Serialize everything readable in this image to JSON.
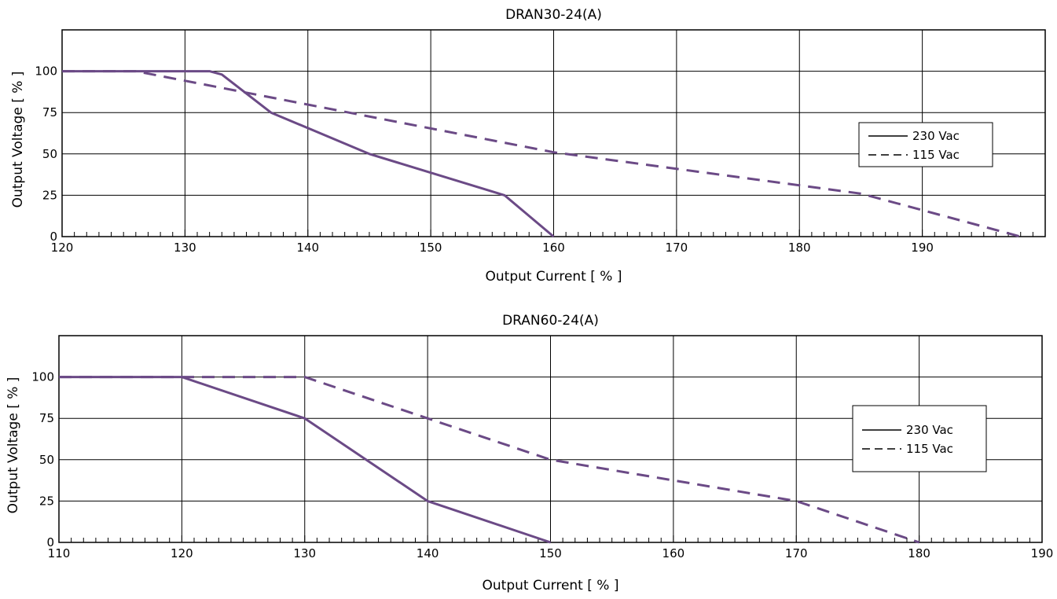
{
  "chart_data": [
    {
      "type": "line",
      "title": "DRAN30-24(A)",
      "xlabel": "Output Current [ % ]",
      "ylabel": "Output Voltage  [ % ]",
      "xlim": [
        120,
        200
      ],
      "ylim": [
        0,
        125
      ],
      "xticks": [
        120,
        130,
        140,
        150,
        160,
        170,
        180,
        190
      ],
      "xtick_labels": [
        "120",
        "130",
        "140",
        "150",
        "160",
        "170",
        "180",
        "190"
      ],
      "yticks": [
        0,
        25,
        50,
        75,
        100
      ],
      "ytick_labels": [
        "0",
        "25",
        "50",
        "75",
        "100"
      ],
      "minor_xtick_step": 1,
      "grid": true,
      "legend_position": "right",
      "line_color": "#6b4a86",
      "series": [
        {
          "name": "230 Vac",
          "style": "solid",
          "points": [
            [
              120,
              100
            ],
            [
              132,
              100
            ],
            [
              133,
              98
            ],
            [
              137,
              75
            ],
            [
              145,
              50
            ],
            [
              156,
              25
            ],
            [
              160,
              0
            ]
          ]
        },
        {
          "name": "115 Vac",
          "style": "dashed",
          "points": [
            [
              120,
              100
            ],
            [
              126,
              100
            ],
            [
              160,
              51
            ],
            [
              185,
              26
            ],
            [
              198,
              0
            ]
          ]
        }
      ]
    },
    {
      "type": "line",
      "title": "DRAN60-24(A)",
      "xlabel": "Output Current [ % ]",
      "ylabel": "Output Voltage  [ % ]",
      "xlim": [
        110,
        190
      ],
      "ylim": [
        0,
        125
      ],
      "xticks": [
        110,
        120,
        130,
        140,
        150,
        160,
        170,
        180,
        190
      ],
      "xtick_labels": [
        "110",
        "120",
        "130",
        "140",
        "150",
        "160",
        "170",
        "180",
        "190"
      ],
      "yticks": [
        0,
        25,
        50,
        75,
        100
      ],
      "ytick_labels": [
        "0",
        "25",
        "50",
        "75",
        "100"
      ],
      "minor_xtick_step": 1,
      "grid": true,
      "legend_position": "right",
      "line_color": "#6b4a86",
      "series": [
        {
          "name": "230 Vac",
          "style": "solid",
          "points": [
            [
              110,
              100
            ],
            [
              120,
              100
            ],
            [
              130,
              75
            ],
            [
              140,
              25
            ],
            [
              150,
              0
            ]
          ]
        },
        {
          "name": "115 Vac",
          "style": "dashed",
          "points": [
            [
              110,
              100
            ],
            [
              130,
              100
            ],
            [
              140,
              75
            ],
            [
              150,
              50
            ],
            [
              170,
              25
            ],
            [
              180,
              0
            ]
          ]
        }
      ]
    }
  ]
}
